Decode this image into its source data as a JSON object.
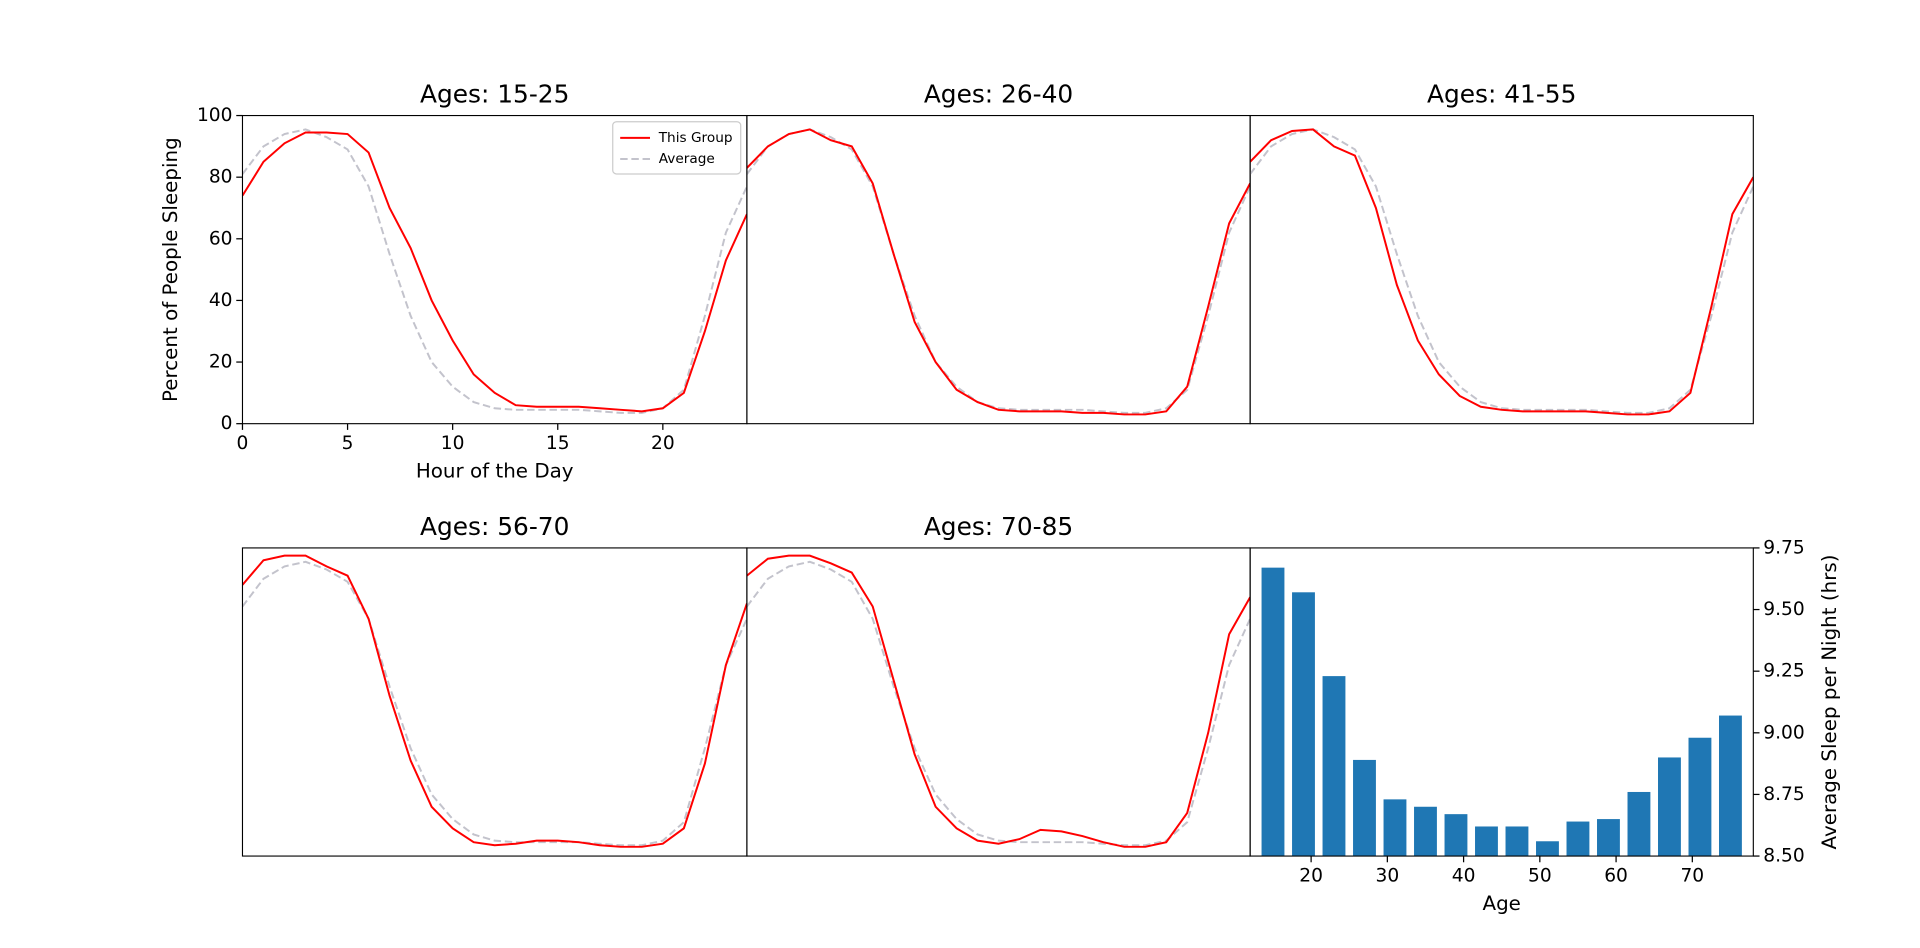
{
  "chart_data": [
    {
      "type": "line",
      "title": "Ages: 15-25",
      "xlabel": "Hour of the Day",
      "ylabel": "Percent of People Sleeping",
      "x": [
        0,
        1,
        2,
        3,
        4,
        5,
        6,
        7,
        8,
        9,
        10,
        11,
        12,
        13,
        14,
        15,
        16,
        17,
        18,
        19,
        20,
        21,
        22,
        23,
        24
      ],
      "series": [
        {
          "name": "This Group",
          "color": "#ff0000",
          "linestyle": "solid",
          "values": [
            74,
            85,
            91,
            94.5,
            94.5,
            94,
            88,
            70,
            57,
            40,
            27,
            16,
            10,
            6,
            5.5,
            5.5,
            5.5,
            5,
            4.5,
            4,
            5,
            10,
            30,
            53,
            68
          ]
        },
        {
          "name": "Average",
          "color": "#c3c3cc",
          "linestyle": "dashed",
          "values": [
            81,
            90,
            94,
            95.5,
            93,
            89,
            77,
            55,
            35,
            20,
            12,
            7,
            5,
            4.5,
            4.5,
            4.5,
            4.5,
            4,
            3.5,
            3.5,
            5,
            11,
            35,
            62,
            77
          ]
        }
      ],
      "xlim": [
        0,
        24
      ],
      "ylim": [
        0,
        100
      ],
      "xticks": [
        0,
        5,
        10,
        15,
        20
      ],
      "yticks": [
        0,
        20,
        40,
        60,
        80,
        100
      ],
      "legend": "upper right"
    },
    {
      "type": "line",
      "title": "Ages: 26-40",
      "x": [
        0,
        1,
        2,
        3,
        4,
        5,
        6,
        7,
        8,
        9,
        10,
        11,
        12,
        13,
        14,
        15,
        16,
        17,
        18,
        19,
        20,
        21,
        22,
        23,
        24
      ],
      "series": [
        {
          "name": "This Group",
          "color": "#ff0000",
          "linestyle": "solid",
          "values": [
            83,
            90,
            94,
            95.5,
            92,
            90,
            78,
            55,
            33,
            20,
            11,
            7,
            4.5,
            4,
            4,
            4,
            3.5,
            3.5,
            3,
            3,
            4,
            12,
            38,
            65,
            78
          ]
        },
        {
          "name": "Average",
          "color": "#c3c3cc",
          "linestyle": "dashed",
          "values": [
            81,
            90,
            94,
            95.5,
            93,
            89,
            77,
            55,
            35,
            20,
            12,
            7,
            5,
            4.5,
            4.5,
            4.5,
            4.5,
            4,
            3.5,
            3.5,
            5,
            11,
            35,
            62,
            77
          ]
        }
      ],
      "xlim": [
        0,
        24
      ],
      "ylim": [
        0,
        100
      ]
    },
    {
      "type": "line",
      "title": "Ages: 41-55",
      "x": [
        0,
        1,
        2,
        3,
        4,
        5,
        6,
        7,
        8,
        9,
        10,
        11,
        12,
        13,
        14,
        15,
        16,
        17,
        18,
        19,
        20,
        21,
        22,
        23,
        24
      ],
      "series": [
        {
          "name": "This Group",
          "color": "#ff0000",
          "linestyle": "solid",
          "values": [
            85,
            92,
            95,
            95.5,
            90,
            87,
            70,
            45,
            27,
            16,
            9,
            5.5,
            4.5,
            4,
            4,
            4,
            4,
            3.5,
            3,
            3,
            4,
            10,
            38,
            68,
            80
          ]
        },
        {
          "name": "Average",
          "color": "#c3c3cc",
          "linestyle": "dashed",
          "values": [
            81,
            90,
            94,
            95.5,
            93,
            89,
            77,
            55,
            35,
            20,
            12,
            7,
            5,
            4.5,
            4.5,
            4.5,
            4.5,
            4,
            3.5,
            3.5,
            5,
            11,
            35,
            62,
            77
          ]
        }
      ],
      "xlim": [
        0,
        24
      ],
      "ylim": [
        0,
        100
      ]
    },
    {
      "type": "line",
      "title": "Ages: 56-70",
      "x": [
        0,
        1,
        2,
        3,
        4,
        5,
        6,
        7,
        8,
        9,
        10,
        11,
        12,
        13,
        14,
        15,
        16,
        17,
        18,
        19,
        20,
        21,
        22,
        23,
        24
      ],
      "series": [
        {
          "name": "This Group",
          "color": "#ff0000",
          "linestyle": "solid",
          "values": [
            88,
            96,
            97.5,
            97.5,
            94,
            91,
            77,
            52,
            31,
            16,
            9,
            4.5,
            3.5,
            4,
            5,
            5,
            4.5,
            3.5,
            3,
            3,
            4,
            9,
            30,
            62,
            82
          ]
        },
        {
          "name": "Average",
          "color": "#c3c3cc",
          "linestyle": "dashed",
          "values": [
            81,
            90,
            94,
            95.5,
            93,
            89,
            77,
            55,
            35,
            20,
            12,
            7,
            5,
            4.5,
            4.5,
            4.5,
            4.5,
            4,
            3.5,
            3.5,
            5,
            11,
            35,
            62,
            77
          ]
        }
      ],
      "xlim": [
        0,
        24
      ],
      "ylim": [
        0,
        100
      ]
    },
    {
      "type": "line",
      "title": "Ages: 70-85",
      "x": [
        0,
        1,
        2,
        3,
        4,
        5,
        6,
        7,
        8,
        9,
        10,
        11,
        12,
        13,
        14,
        15,
        16,
        17,
        18,
        19,
        20,
        21,
        22,
        23,
        24
      ],
      "series": [
        {
          "name": "This Group",
          "color": "#ff0000",
          "linestyle": "solid",
          "values": [
            91,
            96.5,
            97.5,
            97.5,
            95,
            92,
            81,
            57,
            33,
            16,
            9,
            5,
            4,
            5.5,
            8.5,
            8,
            6.5,
            4.5,
            3,
            3,
            4.5,
            14,
            40,
            72,
            84
          ]
        },
        {
          "name": "Average",
          "color": "#c3c3cc",
          "linestyle": "dashed",
          "values": [
            81,
            90,
            94,
            95.5,
            93,
            89,
            77,
            55,
            35,
            20,
            12,
            7,
            5,
            4.5,
            4.5,
            4.5,
            4.5,
            4,
            3.5,
            3.5,
            5,
            11,
            35,
            62,
            77
          ]
        }
      ],
      "xlim": [
        0,
        24
      ],
      "ylim": [
        0,
        100
      ]
    },
    {
      "type": "bar",
      "xlabel": "Age",
      "ylabel": "Average Sleep per Night (hrs)",
      "color": "#1f77b4",
      "bar_width": 3,
      "x": [
        15,
        19,
        23,
        27,
        31,
        35,
        39,
        43,
        47,
        51,
        55,
        59,
        63,
        67,
        71,
        75
      ],
      "values": [
        9.67,
        9.57,
        9.23,
        8.89,
        8.73,
        8.7,
        8.67,
        8.62,
        8.62,
        8.56,
        8.64,
        8.65,
        8.76,
        8.9,
        8.98,
        9.07
      ],
      "xlim": [
        12,
        78
      ],
      "ylim": [
        8.5,
        9.75
      ],
      "xticks": [
        20,
        30,
        40,
        50,
        60,
        70
      ],
      "yticks": [
        {
          "value": 8.5,
          "label": "8.50"
        },
        {
          "value": 8.75,
          "label": "8.75"
        },
        {
          "value": 9.0,
          "label": "9.00"
        },
        {
          "value": 9.25,
          "label": "9.25"
        },
        {
          "value": 9.5,
          "label": "9.50"
        },
        {
          "value": 9.75,
          "label": "9.75"
        }
      ],
      "y_axis_position": "right"
    }
  ]
}
